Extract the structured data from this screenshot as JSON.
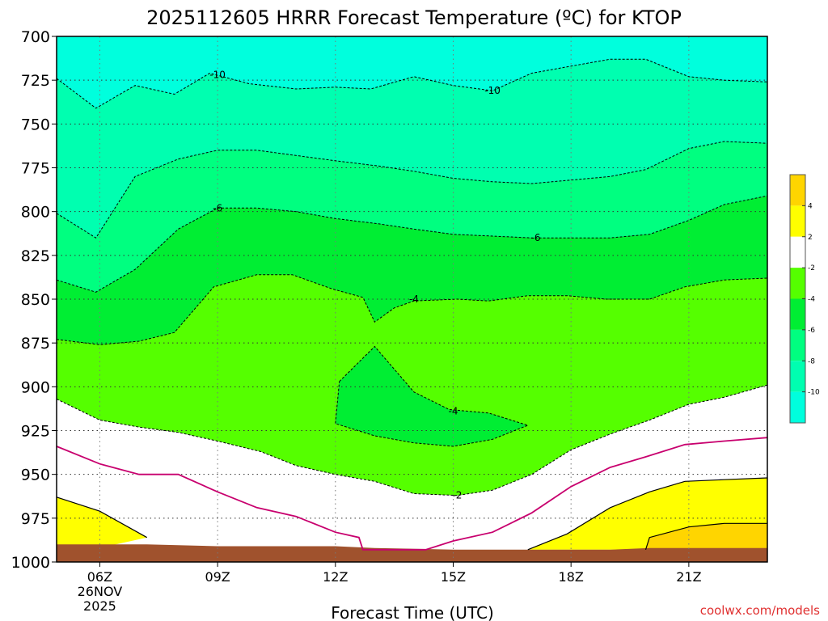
{
  "chart_data": {
    "type": "contour",
    "title": "2025112605 HRRR Forecast Temperature (ºC) for KTOP",
    "xlabel": "Forecast Time (UTC)",
    "credit": "coolwx.com/models",
    "y_axis": {
      "ticks": [
        700,
        725,
        750,
        775,
        800,
        825,
        850,
        875,
        900,
        925,
        950,
        975,
        1000
      ],
      "range": [
        700,
        1000
      ],
      "inverted": true
    },
    "x_axis": {
      "range_hours": [
        4.9,
        23.0
      ],
      "ticks": [
        {
          "hour": 6,
          "label": "06Z",
          "sub1": "26NOV",
          "sub2": "2025"
        },
        {
          "hour": 9,
          "label": "09Z"
        },
        {
          "hour": 12,
          "label": "12Z"
        },
        {
          "hour": 15,
          "label": "15Z"
        },
        {
          "hour": 18,
          "label": "18Z"
        },
        {
          "hour": 21,
          "label": "21Z"
        }
      ]
    },
    "grid": true,
    "colorbar": {
      "ticks": [
        "4",
        "2",
        "-2",
        "-4",
        "-6",
        "-8",
        "-10"
      ],
      "colors": [
        "#ffd500",
        "#ffff00",
        "#ffffff",
        "#55ff00",
        "#00ee33",
        "#00ff80",
        "#00ffb0",
        "#00ffdd"
      ]
    },
    "contour_labels": [
      {
        "text": "-10",
        "hour": 9.0,
        "p": 722
      },
      {
        "text": "-10",
        "hour": 16.0,
        "p": 731
      },
      {
        "text": "-6",
        "hour": 9.0,
        "p": 798
      },
      {
        "text": "-6",
        "hour": 17.1,
        "p": 815
      },
      {
        "text": "-4",
        "hour": 14.0,
        "p": 850
      },
      {
        "text": "-4",
        "hour": 15.0,
        "p": 914
      },
      {
        "text": "-2",
        "hour": 15.1,
        "p": 962
      }
    ],
    "isotherm_minus10": [
      [
        4.9,
        724
      ],
      [
        5.9,
        741
      ],
      [
        6.9,
        728
      ],
      [
        7.9,
        733
      ],
      [
        8.8,
        721
      ],
      [
        9.8,
        727
      ],
      [
        11.0,
        730
      ],
      [
        12.0,
        729
      ],
      [
        12.9,
        730
      ],
      [
        14.0,
        723
      ],
      [
        15.0,
        728
      ],
      [
        16.0,
        731
      ],
      [
        17.0,
        721
      ],
      [
        18.0,
        717
      ],
      [
        19.0,
        713
      ],
      [
        19.9,
        713
      ],
      [
        21.0,
        723
      ],
      [
        21.9,
        725
      ],
      [
        23.0,
        726
      ]
    ],
    "isotherm_minus8": [
      [
        4.9,
        801
      ],
      [
        5.9,
        815
      ],
      [
        6.9,
        780
      ],
      [
        8.0,
        770
      ],
      [
        9.0,
        765
      ],
      [
        10.0,
        765
      ],
      [
        12.0,
        771
      ],
      [
        13.1,
        774
      ],
      [
        14.0,
        777
      ],
      [
        15.0,
        781
      ],
      [
        16.0,
        783
      ],
      [
        17.0,
        784
      ],
      [
        18.0,
        782
      ],
      [
        19.0,
        780
      ],
      [
        19.9,
        776
      ],
      [
        21.0,
        764
      ],
      [
        21.9,
        760
      ],
      [
        23.0,
        761
      ]
    ],
    "isotherm_minus6": [
      [
        4.9,
        839
      ],
      [
        5.9,
        846
      ],
      [
        6.9,
        833
      ],
      [
        8.0,
        810
      ],
      [
        9.0,
        798
      ],
      [
        10.0,
        798
      ],
      [
        11.0,
        800
      ],
      [
        12.0,
        804
      ],
      [
        13.1,
        807
      ],
      [
        14.0,
        810
      ],
      [
        15.0,
        813
      ],
      [
        16.0,
        814
      ],
      [
        17.0,
        815
      ],
      [
        18.0,
        815
      ],
      [
        19.0,
        815
      ],
      [
        20.0,
        813
      ],
      [
        21.0,
        805
      ],
      [
        21.9,
        796
      ],
      [
        23.0,
        791
      ]
    ],
    "isotherm_minus4": [
      [
        4.9,
        873
      ],
      [
        6.0,
        876
      ],
      [
        7.0,
        874
      ],
      [
        7.9,
        869
      ],
      [
        8.9,
        843
      ],
      [
        10.0,
        836
      ],
      [
        10.9,
        836
      ],
      [
        11.9,
        844
      ],
      [
        12.7,
        849
      ],
      [
        13.0,
        863
      ],
      [
        13.5,
        855
      ],
      [
        14.0,
        851
      ],
      [
        15.1,
        850
      ],
      [
        15.9,
        851
      ],
      [
        16.9,
        848
      ],
      [
        17.9,
        848
      ],
      [
        18.9,
        850
      ],
      [
        20.0,
        850
      ],
      [
        20.9,
        843
      ],
      [
        21.9,
        839
      ],
      [
        23.0,
        838
      ]
    ],
    "isotherm_minus4_island": [
      [
        12.1,
        897
      ],
      [
        13.0,
        877
      ],
      [
        14.0,
        903
      ],
      [
        14.9,
        913
      ],
      [
        15.9,
        915
      ],
      [
        16.9,
        922
      ],
      [
        16.0,
        930
      ],
      [
        15.0,
        934
      ],
      [
        14.0,
        932
      ],
      [
        13.0,
        928
      ],
      [
        12.0,
        921
      ]
    ],
    "isotherm_minus2": [
      [
        4.9,
        907
      ],
      [
        6.0,
        919
      ],
      [
        7.0,
        923
      ],
      [
        8.0,
        926
      ],
      [
        9.0,
        931
      ],
      [
        10.1,
        937
      ],
      [
        11.0,
        945
      ],
      [
        12.0,
        950
      ],
      [
        13.0,
        954
      ],
      [
        14.0,
        961
      ],
      [
        15.1,
        962
      ],
      [
        16.0,
        959
      ],
      [
        17.0,
        950
      ],
      [
        18.0,
        936
      ],
      [
        19.0,
        927
      ],
      [
        20.0,
        919
      ],
      [
        21.0,
        910
      ],
      [
        21.9,
        906
      ],
      [
        23.0,
        899
      ]
    ],
    "isotherm_0": [
      [
        4.9,
        934
      ],
      [
        6.0,
        944
      ],
      [
        7.0,
        950
      ],
      [
        8.0,
        950
      ],
      [
        9.0,
        960
      ],
      [
        10.0,
        969
      ],
      [
        11.0,
        974
      ],
      [
        12.0,
        983
      ],
      [
        12.6,
        986
      ],
      [
        12.7,
        993
      ],
      [
        14.3,
        993
      ],
      [
        15.0,
        988
      ],
      [
        16.0,
        983
      ],
      [
        17.0,
        972
      ],
      [
        18.0,
        957
      ],
      [
        19.0,
        946
      ],
      [
        19.9,
        940
      ],
      [
        20.9,
        933
      ],
      [
        21.9,
        931
      ],
      [
        23.0,
        929
      ]
    ],
    "isotherm_2_left": [
      [
        4.9,
        963
      ],
      [
        6.0,
        971
      ],
      [
        7.2,
        986
      ],
      [
        6.0,
        992
      ],
      [
        4.9,
        992
      ]
    ],
    "isotherm_2_right": [
      [
        16.9,
        993
      ],
      [
        17.9,
        984
      ],
      [
        19.0,
        969
      ],
      [
        20.0,
        960
      ],
      [
        20.9,
        954
      ],
      [
        21.9,
        953
      ],
      [
        23.0,
        952
      ],
      [
        23.0,
        993
      ]
    ],
    "isotherm_4_right": [
      [
        19.9,
        993
      ],
      [
        20.0,
        986
      ],
      [
        21.0,
        980
      ],
      [
        21.9,
        978
      ],
      [
        23.0,
        978
      ],
      [
        23.0,
        993
      ]
    ],
    "ground": [
      [
        4.9,
        990
      ],
      [
        7.2,
        990
      ],
      [
        9.0,
        991
      ],
      [
        12.0,
        991
      ],
      [
        13.0,
        992
      ],
      [
        15.0,
        993
      ],
      [
        19.0,
        993
      ],
      [
        20.0,
        992
      ],
      [
        23.0,
        992
      ],
      [
        23.0,
        1000
      ],
      [
        4.9,
        1000
      ]
    ]
  }
}
